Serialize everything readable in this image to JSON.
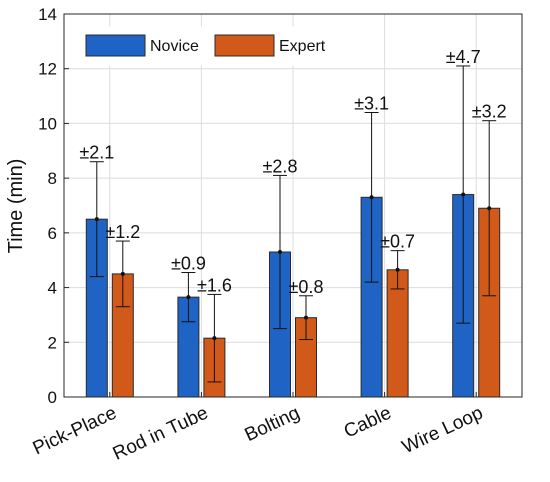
{
  "chart_data": {
    "type": "bar",
    "categories": [
      "Pick-Place",
      "Rod in Tube",
      "Bolting",
      "Cable",
      "Wire Loop"
    ],
    "series": [
      {
        "name": "Novice",
        "color": "#1f64c4",
        "values": [
          6.5,
          3.65,
          5.3,
          7.3,
          7.4
        ],
        "errors": [
          2.1,
          0.9,
          2.8,
          3.1,
          4.7
        ],
        "error_labels": [
          "±2.1",
          "±0.9",
          "±2.8",
          "±3.1",
          "±4.7"
        ]
      },
      {
        "name": "Expert",
        "color": "#d15a1a",
        "values": [
          4.5,
          2.15,
          2.9,
          4.65,
          6.9
        ],
        "errors": [
          1.2,
          1.6,
          0.8,
          0.7,
          3.2
        ],
        "error_labels": [
          "±1.2",
          "±1.6",
          "±0.8",
          "±0.7",
          "±3.2"
        ]
      }
    ],
    "ylabel": "Time (min)",
    "xlabel": "",
    "title": "",
    "ylim": [
      0,
      14
    ],
    "yticks": [
      "0",
      "2",
      "4",
      "6",
      "8",
      "10",
      "12",
      "14"
    ],
    "grid": true,
    "legend_position": "top-left"
  }
}
